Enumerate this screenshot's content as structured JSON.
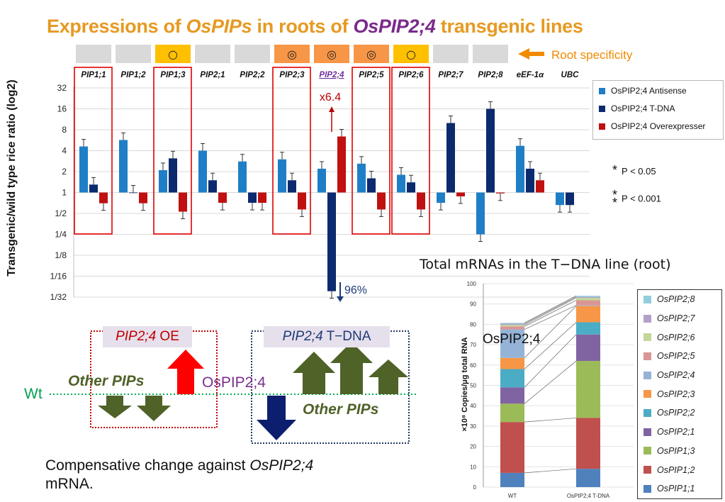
{
  "title": {
    "part1": "Expressions of ",
    "part2": "OsPIPs",
    "part3": " in roots of ",
    "part4": "OsPIP2;4",
    "part5": " transgenic lines"
  },
  "specificity": {
    "label": "Root specificity",
    "marks": [
      "",
      "",
      "○",
      "",
      "",
      "◎",
      "◎",
      "◎",
      "○",
      "",
      ""
    ],
    "cell_colors": [
      "#d9d9d9",
      "#d9d9d9",
      "#ffc000",
      "#d9d9d9",
      "#d9d9d9",
      "#f79646",
      "#f79646",
      "#f79646",
      "#ffc000",
      "#d9d9d9",
      "#d9d9d9"
    ]
  },
  "pvalues": {
    "p1": "P < 0.05",
    "p2": "P < 0.001"
  },
  "chart_data": [
    {
      "type": "bar",
      "ylabel": "Transgenic/wild type rice ratio (log2)",
      "yscale": "log2",
      "ylim": [
        0.03125,
        32
      ],
      "ytick_labels": [
        "32",
        "16",
        "8",
        "4",
        "2",
        "1",
        "1/2",
        "1/4",
        "1/8",
        "1/16",
        "1/32"
      ],
      "ytick_values": [
        32,
        16,
        8,
        4,
        2,
        1,
        0.5,
        0.25,
        0.125,
        0.0625,
        0.03125
      ],
      "baseline": 1,
      "categories": [
        "PIP1;1",
        "PIP1;2",
        "PIP1;3",
        "PIP2;1",
        "PIP2;2",
        "PIP2;3",
        "PIP2;4",
        "PIP2;5",
        "PIP2;6",
        "PIP2;7",
        "PIP2;8",
        "eEF-1α",
        "UBC"
      ],
      "series": [
        {
          "name": "OsPIP2;4 Antisense",
          "color": "#1f7fc6",
          "values": [
            4.6,
            5.7,
            2.1,
            4.0,
            2.8,
            3.0,
            2.2,
            2.6,
            1.8,
            0.71,
            0.25,
            4.7,
            0.66
          ]
        },
        {
          "name": "OsPIP2;4 T-DNA",
          "color": "#0c2a6e",
          "values": [
            1.3,
            1.0,
            3.1,
            1.5,
            0.71,
            1.5,
            0.038,
            1.6,
            1.4,
            10.0,
            16.0,
            2.2,
            0.66
          ]
        },
        {
          "name": "OsPIP2;4 Overexpresser",
          "color": "#c01010",
          "values": [
            0.7,
            0.7,
            0.53,
            0.71,
            0.71,
            0.57,
            6.4,
            0.57,
            0.57,
            0.88,
            0.97,
            1.5,
            null
          ]
        }
      ],
      "annotations": {
        "up": "x6.4",
        "down": "96%"
      },
      "boxed_categories": [
        "PIP1;1",
        "PIP1;3",
        "PIP2;3",
        "PIP2;5",
        "PIP2;6"
      ]
    },
    {
      "type": "bar",
      "subtype": "stacked",
      "title": "Total mRNAs in the T−DNA line (root)",
      "ylabel": "×10⁸ Copies/μg total RNA",
      "ylim": [
        0,
        100
      ],
      "ytick_labels": [
        "0",
        "10",
        "20",
        "30",
        "40",
        "50",
        "60",
        "70",
        "80",
        "90",
        "100"
      ],
      "categories": [
        "WT",
        "OsPIP2;4 T-DNA"
      ],
      "note": "OsPIP2;4",
      "series": [
        {
          "name": "OsPIP1;1",
          "color": "#4f81bd",
          "values": [
            7,
            9
          ]
        },
        {
          "name": "OsPIP1;2",
          "color": "#c0504d",
          "values": [
            25,
            25
          ]
        },
        {
          "name": "OsPIP1;3",
          "color": "#9bbb59",
          "values": [
            9,
            28
          ]
        },
        {
          "name": "OsPIP2;1",
          "color": "#8064a2",
          "values": [
            8,
            13
          ]
        },
        {
          "name": "OsPIP2;2",
          "color": "#4bacc6",
          "values": [
            9,
            6
          ]
        },
        {
          "name": "OsPIP2;3",
          "color": "#f79646",
          "values": [
            5.5,
            8
          ]
        },
        {
          "name": "OsPIP2;4",
          "color": "#95b3d7",
          "values": [
            14,
            0.3
          ]
        },
        {
          "name": "OsPIP2;5",
          "color": "#d99694",
          "values": [
            1.5,
            2.5
          ]
        },
        {
          "name": "OsPIP2;6",
          "color": "#c3d69b",
          "values": [
            0.7,
            1.2
          ]
        },
        {
          "name": "OsPIP2;7",
          "color": "#b2a1c7",
          "values": [
            0.6,
            0.5
          ]
        },
        {
          "name": "OsPIP2;8",
          "color": "#93cddd",
          "values": [
            0.4,
            0.5
          ]
        }
      ]
    }
  ],
  "diagram": {
    "oe_label_gene": "PIP2;4",
    "oe_label_suffix": " OE",
    "tdna_label_gene": "PIP2;4",
    "tdna_label_suffix": " T−DNA",
    "other_pips_1": "Other PIPs",
    "other_pips_2": "Other PIPs",
    "ospip24": "OsPIP2;4",
    "wt": "Wt"
  },
  "caption": {
    "part1": "Compensative change against ",
    "part2": "OsPIP2;4",
    "part3": " mRNA."
  }
}
